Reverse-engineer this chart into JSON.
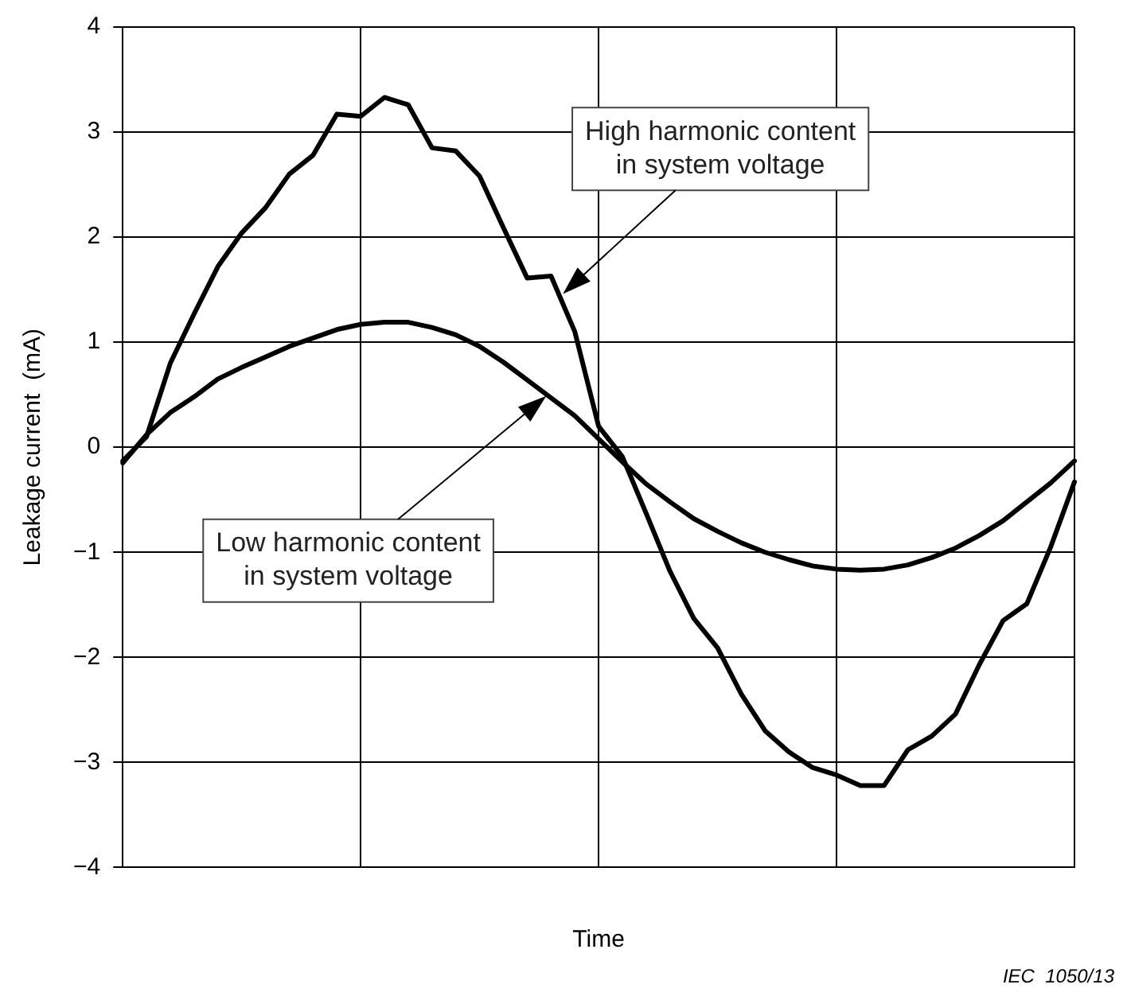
{
  "chart_data": {
    "type": "line",
    "xlabel": "Time",
    "ylabel": "Leakage current  (mA)",
    "categories": [
      null,
      null,
      null,
      null,
      null,
      null,
      null,
      null,
      null,
      null,
      null,
      null,
      null,
      null,
      null,
      null,
      null,
      null,
      null,
      null,
      null,
      null,
      null,
      null,
      null,
      null,
      null,
      null,
      null,
      null,
      null,
      null,
      null,
      null,
      null,
      null,
      null,
      null,
      null,
      null,
      null
    ],
    "ylim": [
      -4,
      4
    ],
    "yticks": [
      {
        "value": -4,
        "label": "−4"
      },
      {
        "value": -3,
        "label": "−3"
      },
      {
        "value": -2,
        "label": "−2"
      },
      {
        "value": -1,
        "label": "−1"
      },
      0,
      1,
      2,
      3,
      4
    ],
    "grid": true,
    "legend": false,
    "marker": "none",
    "line_style": "solid",
    "series": [
      {
        "color": "#000000",
        "values": [
          -0.13,
          0.1,
          0.8,
          1.27,
          1.72,
          2.04,
          2.28,
          2.6,
          2.78,
          3.17,
          3.15,
          3.33,
          3.26,
          2.85,
          2.82,
          2.58,
          2.09,
          1.61,
          1.63,
          1.1,
          0.2,
          -0.09,
          -0.63,
          -1.18,
          -1.63,
          -1.91,
          -2.35,
          -2.7,
          -2.9,
          -3.05,
          -3.12,
          -3.22,
          -3.22,
          -2.88,
          -2.75,
          -2.54,
          -2.07,
          -1.65,
          -1.49,
          -0.95,
          -0.33
        ]
      },
      {
        "color": "#000000",
        "values": [
          -0.15,
          0.12,
          0.33,
          0.48,
          0.65,
          0.76,
          0.86,
          0.96,
          1.04,
          1.12,
          1.17,
          1.19,
          1.19,
          1.14,
          1.07,
          0.96,
          0.81,
          0.64,
          0.47,
          0.3,
          0.08,
          -0.14,
          -0.35,
          -0.52,
          -0.68,
          -0.8,
          -0.91,
          -1,
          -1.07,
          -1.13,
          -1.16,
          -1.17,
          -1.16,
          -1.12,
          -1.05,
          -0.96,
          -0.84,
          -0.7,
          -0.52,
          -0.34,
          -0.13
        ]
      }
    ],
    "annotations": [
      "High harmonic content\nin system voltage",
      "Low harmonic content\nin system voltage",
      "IEC  1050/13"
    ]
  }
}
